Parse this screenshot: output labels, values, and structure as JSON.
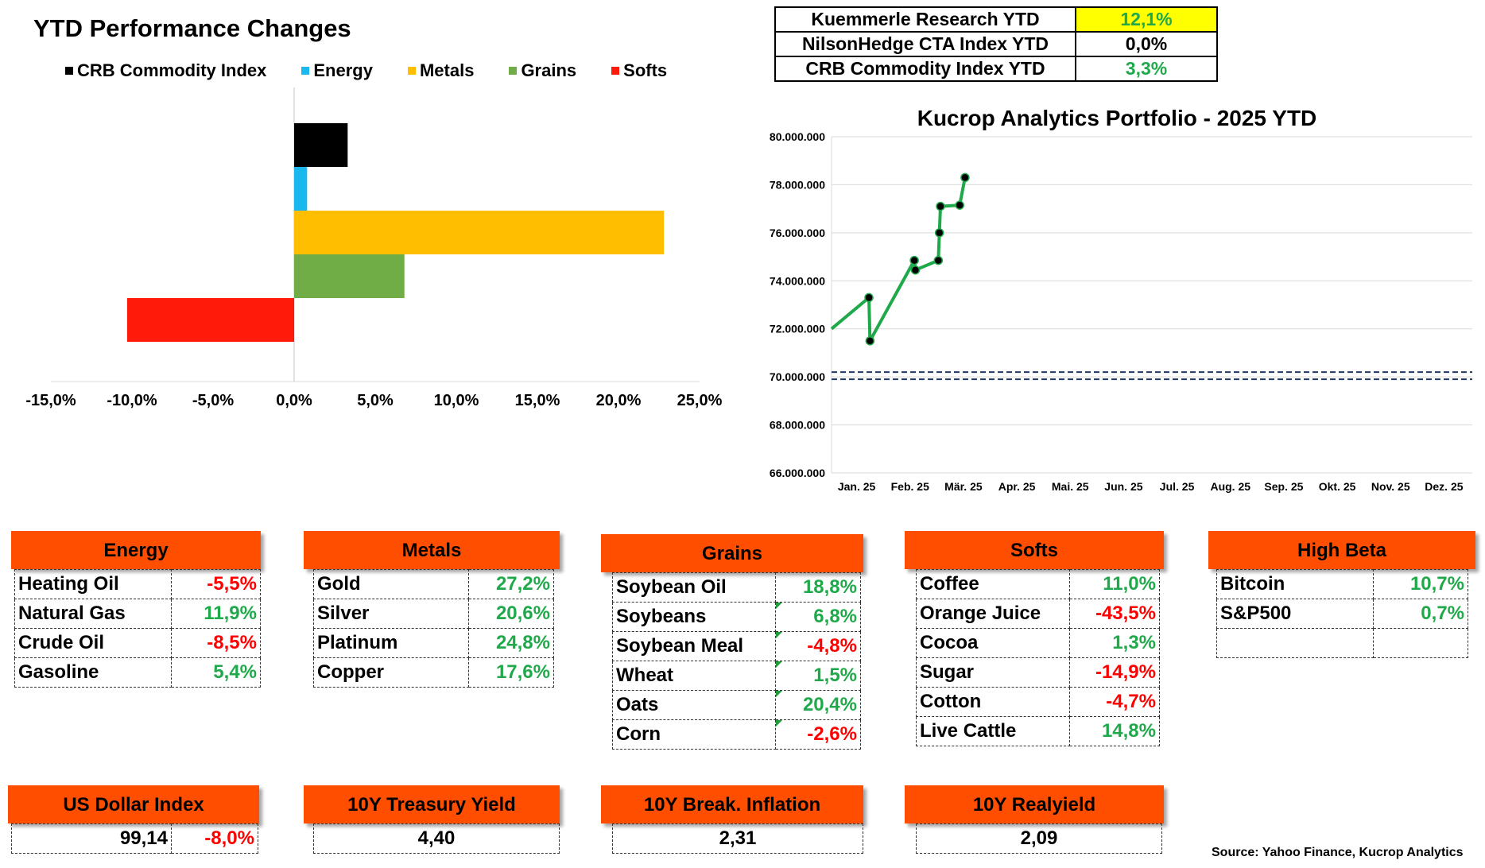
{
  "bar_chart": {
    "title": "YTD Performance Changes",
    "legend": [
      {
        "name": "CRB Commodity Index",
        "color": "#000000"
      },
      {
        "name": "Energy",
        "color": "#1ab8ee"
      },
      {
        "name": "Metals",
        "color": "#ffbf00"
      },
      {
        "name": "Grains",
        "color": "#70ad47"
      },
      {
        "name": "Softs",
        "color": "#ff1a0a"
      }
    ]
  },
  "ytd_table": {
    "rows": [
      {
        "label": "Kuemmerle Research YTD",
        "value": "12,1%",
        "value_color": "#1fa94a",
        "bg": "#ffff00"
      },
      {
        "label": "NilsonHedge CTA Index YTD",
        "value": "0,0%",
        "value_color": "#000000",
        "bg": "#ffffff"
      },
      {
        "label": "CRB Commodity Index YTD",
        "value": "3,3%",
        "value_color": "#1fa94a",
        "bg": "#ffffff"
      }
    ]
  },
  "line_chart": {
    "title": "Kucrop Analytics Portfolio - 2025 YTD"
  },
  "chart_data": [
    {
      "type": "bar",
      "orientation": "horizontal",
      "title": "YTD Performance Changes",
      "categories": [
        "CRB Commodity Index",
        "Energy",
        "Metals",
        "Grains",
        "Softs"
      ],
      "values": [
        3.3,
        0.8,
        22.8,
        6.8,
        -10.3
      ],
      "colors": [
        "#000000",
        "#1ab8ee",
        "#ffbf00",
        "#70ad47",
        "#ff1a0a"
      ],
      "xlim": [
        -15,
        25
      ],
      "xticks": [
        -15,
        -10,
        -5,
        0,
        5,
        10,
        15,
        20,
        25
      ],
      "xtick_labels": [
        "-15,0%",
        "-10,0%",
        "-5,0%",
        "0,0%",
        "5,0%",
        "10,0%",
        "15,0%",
        "20,0%",
        "25,0%"
      ],
      "grid": false,
      "legend": "top"
    },
    {
      "type": "line",
      "title": "Kucrop Analytics Portfolio - 2025 YTD",
      "x_categories": [
        "Jan. 25",
        "Feb. 25",
        "Mär. 25",
        "Apr. 25",
        "Mai. 25",
        "Jun. 25",
        "Jul. 25",
        "Aug. 25",
        "Sep. 25",
        "Okt. 25",
        "Nov. 25",
        "Dez. 25"
      ],
      "series": [
        {
          "color": "#1fa94a",
          "points": [
            {
              "month": 0.0,
              "y": 72000000
            },
            {
              "month": 0.7,
              "y": 73300000
            },
            {
              "month": 0.72,
              "y": 71500000
            },
            {
              "month": 1.55,
              "y": 74850000
            },
            {
              "month": 1.57,
              "y": 74450000
            },
            {
              "month": 2.0,
              "y": 74850000
            },
            {
              "month": 2.02,
              "y": 76000000
            },
            {
              "month": 2.04,
              "y": 77100000
            },
            {
              "month": 2.4,
              "y": 77150000
            },
            {
              "month": 2.5,
              "y": 78300000
            }
          ]
        }
      ],
      "reference_lines": [
        {
          "y": 70200000,
          "color": "#1f3864",
          "style": "dashed"
        },
        {
          "y": 69900000,
          "color": "#1f3864",
          "style": "dashed"
        }
      ],
      "ylim": [
        66000000,
        80000000
      ],
      "yticks": [
        66000000,
        68000000,
        70000000,
        72000000,
        74000000,
        76000000,
        78000000,
        80000000
      ],
      "ytick_labels": [
        "66.000.000",
        "68.000.000",
        "70.000.000",
        "72.000.000",
        "74.000.000",
        "76.000.000",
        "78.000.000",
        "80.000.000"
      ],
      "grid": true
    }
  ],
  "sectors": {
    "energy": {
      "title": "Energy",
      "rows": [
        {
          "name": "Heating Oil",
          "value": "-5,5%",
          "sign": "neg"
        },
        {
          "name": "Natural Gas",
          "value": "11,9%",
          "sign": "pos"
        },
        {
          "name": "Crude Oil",
          "value": "-8,5%",
          "sign": "neg"
        },
        {
          "name": "Gasoline",
          "value": "5,4%",
          "sign": "pos"
        }
      ]
    },
    "metals": {
      "title": "Metals",
      "rows": [
        {
          "name": "Gold",
          "value": "27,2%",
          "sign": "pos"
        },
        {
          "name": "Silver",
          "value": "20,6%",
          "sign": "pos"
        },
        {
          "name": "Platinum",
          "value": "24,8%",
          "sign": "pos"
        },
        {
          "name": "Copper",
          "value": "17,6%",
          "sign": "pos"
        }
      ]
    },
    "grains": {
      "title": "Grains",
      "rows": [
        {
          "name": "Soybean Oil",
          "value": "18,8%",
          "sign": "pos"
        },
        {
          "name": "Soybeans",
          "value": "6,8%",
          "sign": "pos"
        },
        {
          "name": "Soybean Meal",
          "value": "-4,8%",
          "sign": "neg"
        },
        {
          "name": "Wheat",
          "value": "1,5%",
          "sign": "pos"
        },
        {
          "name": "Oats",
          "value": "20,4%",
          "sign": "pos"
        },
        {
          "name": "Corn",
          "value": "-2,6%",
          "sign": "neg"
        }
      ]
    },
    "softs": {
      "title": "Softs",
      "rows": [
        {
          "name": "Coffee",
          "value": "11,0%",
          "sign": "pos"
        },
        {
          "name": "Orange Juice",
          "value": "-43,5%",
          "sign": "neg"
        },
        {
          "name": "Cocoa",
          "value": "1,3%",
          "sign": "pos"
        },
        {
          "name": "Sugar",
          "value": "-14,9%",
          "sign": "neg"
        },
        {
          "name": "Cotton",
          "value": "-4,7%",
          "sign": "neg"
        },
        {
          "name": "Live Cattle",
          "value": "14,8%",
          "sign": "pos"
        }
      ]
    },
    "high_beta": {
      "title": "High Beta",
      "rows": [
        {
          "name": "Bitcoin",
          "value": "10,7%",
          "sign": "pos"
        },
        {
          "name": "S&P500",
          "value": "0,7%",
          "sign": "pos"
        },
        {
          "name": "",
          "value": "",
          "sign": "pos"
        }
      ]
    }
  },
  "indicators": {
    "us_dollar": {
      "title": "US Dollar Index",
      "level": "99,14",
      "change": "-8,0%"
    },
    "treasury": {
      "title": "10Y Treasury Yield",
      "level": "4,40"
    },
    "breakeven": {
      "title": "10Y Break. Inflation",
      "level": "2,31"
    },
    "realyield": {
      "title": "10Y Realyield",
      "level": "2,09"
    }
  },
  "source": "Source: Yahoo Finance, Kucrop Analytics"
}
